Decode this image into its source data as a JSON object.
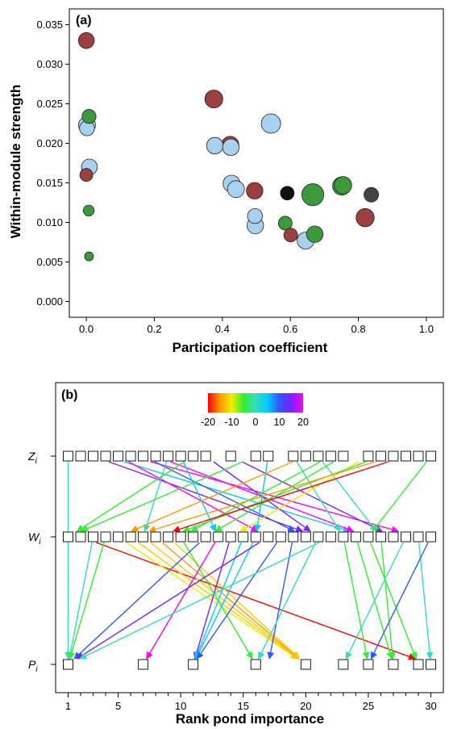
{
  "chart_data": [
    {
      "type": "scatter",
      "panel": "(a)",
      "xlabel": "Participation coefficient",
      "ylabel": "Within-module strength",
      "xlim": [
        -0.05,
        1.05
      ],
      "ylim": [
        -0.002,
        0.037
      ],
      "xticks": [
        "0.0",
        "0.2",
        "0.4",
        "0.6",
        "0.8",
        "1.0"
      ],
      "yticks": [
        "0.000",
        "0.005",
        "0.010",
        "0.015",
        "0.020",
        "0.025",
        "0.030",
        "0.035"
      ],
      "point_size_encoding": "relative marker size",
      "points": [
        {
          "x": 0.0,
          "y": 0.033,
          "size": 0.55,
          "color": "#9b3f3f"
        },
        {
          "x": 0.002,
          "y": 0.0223,
          "size": 0.6,
          "color": "#a8d1f0"
        },
        {
          "x": 0.002,
          "y": 0.0219,
          "size": 0.5,
          "color": "#a8d1f0"
        },
        {
          "x": 0.008,
          "y": 0.0234,
          "size": 0.45,
          "color": "#3b9a3b"
        },
        {
          "x": 0.009,
          "y": 0.017,
          "size": 0.55,
          "color": "#a8d1f0"
        },
        {
          "x": 0.0,
          "y": 0.016,
          "size": 0.4,
          "color": "#9b3f3f"
        },
        {
          "x": 0.007,
          "y": 0.0115,
          "size": 0.3,
          "color": "#3b9a3b"
        },
        {
          "x": 0.008,
          "y": 0.0057,
          "size": 0.2,
          "color": "#3b9a3b"
        },
        {
          "x": 0.375,
          "y": 0.0256,
          "size": 0.65,
          "color": "#9b3f3f"
        },
        {
          "x": 0.378,
          "y": 0.0197,
          "size": 0.58,
          "color": "#a8d1f0"
        },
        {
          "x": 0.423,
          "y": 0.0198,
          "size": 0.62,
          "color": "#9b3f3f"
        },
        {
          "x": 0.425,
          "y": 0.0195,
          "size": 0.58,
          "color": "#a8d1f0"
        },
        {
          "x": 0.427,
          "y": 0.0149,
          "size": 0.6,
          "color": "#a8d1f0"
        },
        {
          "x": 0.44,
          "y": 0.0142,
          "size": 0.6,
          "color": "#a8d1f0"
        },
        {
          "x": 0.495,
          "y": 0.014,
          "size": 0.58,
          "color": "#9b3f3f"
        },
        {
          "x": 0.543,
          "y": 0.0225,
          "size": 0.72,
          "color": "#a8d1f0"
        },
        {
          "x": 0.496,
          "y": 0.0108,
          "size": 0.5,
          "color": "#a8d1f0"
        },
        {
          "x": 0.497,
          "y": 0.0096,
          "size": 0.58,
          "color": "#a8d1f0"
        },
        {
          "x": 0.591,
          "y": 0.0137,
          "size": 0.44,
          "color": "#111111"
        },
        {
          "x": 0.585,
          "y": 0.0099,
          "size": 0.44,
          "color": "#3b9a3b"
        },
        {
          "x": 0.601,
          "y": 0.0084,
          "size": 0.44,
          "color": "#9b3f3f"
        },
        {
          "x": 0.666,
          "y": 0.0135,
          "size": 0.85,
          "color": "#3b9a3b"
        },
        {
          "x": 0.645,
          "y": 0.0077,
          "size": 0.6,
          "color": "#a8d1f0"
        },
        {
          "x": 0.672,
          "y": 0.0085,
          "size": 0.58,
          "color": "#3b9a3b"
        },
        {
          "x": 0.751,
          "y": 0.0146,
          "size": 0.66,
          "color": "#3b9a3b"
        },
        {
          "x": 0.755,
          "y": 0.0147,
          "size": 0.62,
          "color": "#3b9a3b"
        },
        {
          "x": 0.82,
          "y": 0.0106,
          "size": 0.66,
          "color": "#9b3f3f"
        },
        {
          "x": 0.838,
          "y": 0.0135,
          "size": 0.48,
          "color": "#444444"
        }
      ]
    },
    {
      "type": "bipartite-rank-diagram",
      "panel": "(b)",
      "xlabel": "Rank pond importance",
      "xlim": [
        0,
        31
      ],
      "xticks": [
        "1",
        "5",
        "10",
        "15",
        "20",
        "25",
        "30"
      ],
      "minor_xticks": [
        2,
        3,
        4,
        6,
        7,
        8,
        9,
        11,
        12,
        13,
        14,
        16,
        17,
        18,
        19,
        21,
        22,
        23,
        24,
        26,
        27,
        28,
        29
      ],
      "rows": [
        {
          "label": "Z_i",
          "label_main": "Z",
          "label_sub": "i",
          "squares": [
            1,
            2,
            3,
            4,
            5,
            6,
            7,
            8,
            9,
            10,
            11,
            12,
            14,
            16,
            17,
            19,
            20,
            21,
            22,
            23,
            25,
            26,
            27,
            28,
            29,
            30
          ]
        },
        {
          "label": "W_i",
          "label_main": "W",
          "label_sub": "i",
          "squares": [
            1,
            2,
            3,
            4,
            5,
            6,
            7,
            8,
            9,
            10,
            11,
            12,
            13,
            14,
            15,
            16,
            17,
            18,
            19,
            20,
            21,
            22,
            23,
            24,
            25,
            26,
            27,
            28,
            29,
            30
          ]
        },
        {
          "label": "P_i",
          "label_main": "P",
          "label_sub": "i",
          "squares": [
            1,
            7,
            11,
            16,
            20,
            23,
            25,
            27,
            29,
            30
          ]
        }
      ],
      "colorbar": {
        "min": -20,
        "max": 20,
        "tick_labels": [
          "-20",
          "-10",
          "0",
          "10",
          "20"
        ],
        "colors": [
          "#ff0000",
          "#ff9900",
          "#eeee00",
          "#33ee33",
          "#33ddbb",
          "#00ccff",
          "#3355ff",
          "#7722ff",
          "#ff00ff"
        ]
      },
      "links": [
        {
          "from": 1,
          "to": 1,
          "path": [
            "Z",
            "W",
            "P"
          ],
          "color": "#33ddbb"
        },
        {
          "from": 2,
          "to": 30,
          "path": [
            "W",
            "P"
          ],
          "color": "#ff0000"
        },
        {
          "from": 3,
          "to": 21,
          "path": [
            "Z",
            "W"
          ],
          "color": "#7722ff"
        },
        {
          "from": 3,
          "to": 1,
          "path": [
            "W",
            "P"
          ],
          "color": "#33ddbb"
        },
        {
          "from": 4,
          "to": 25,
          "path": [
            "Z",
            "W"
          ],
          "color": "#00ccff"
        },
        {
          "from": 4,
          "to": 1,
          "path": [
            "W",
            "P"
          ],
          "color": "#33ee33"
        },
        {
          "from": 5,
          "to": 17,
          "path": [
            "Z",
            "W"
          ],
          "color": "#ff00ff"
        },
        {
          "from": 5,
          "to": 20,
          "path": [
            "W",
            "P"
          ],
          "color": "#eeee00"
        },
        {
          "from": 6,
          "to": 29,
          "path": [
            "Z",
            "W"
          ],
          "color": "#ff00ff"
        },
        {
          "from": 6,
          "to": 20,
          "path": [
            "W",
            "P"
          ],
          "color": "#ffcc00"
        },
        {
          "from": 7,
          "to": 20,
          "path": [
            "Z",
            "W"
          ],
          "color": "#3355ff"
        },
        {
          "from": 7,
          "to": 20,
          "path": [
            "W",
            "P"
          ],
          "color": "#ffcc00"
        },
        {
          "from": 8,
          "to": 25,
          "path": [
            "Z",
            "W"
          ],
          "color": "#ff00ff"
        },
        {
          "from": 8,
          "to": 20,
          "path": [
            "W",
            "P"
          ],
          "color": "#ff9900"
        },
        {
          "from": 9,
          "to": 7,
          "path": [
            "Z",
            "W"
          ],
          "color": "#33ddbb"
        },
        {
          "from": 9,
          "to": 20,
          "path": [
            "W",
            "P"
          ],
          "color": "#ffcc00"
        },
        {
          "from": 10,
          "to": 13,
          "path": [
            "Z",
            "W"
          ],
          "color": "#00ccff"
        },
        {
          "from": 10,
          "to": 16,
          "path": [
            "W",
            "P"
          ],
          "color": "#33ee33"
        },
        {
          "from": 11,
          "to": 1,
          "path": [
            "Z",
            "W"
          ],
          "color": "#33ee33"
        },
        {
          "from": 12,
          "to": 21,
          "path": [
            "Z",
            "W"
          ],
          "color": "#7722ff"
        },
        {
          "from": 12,
          "to": 1,
          "path": [
            "W",
            "P"
          ],
          "color": "#3355ff"
        },
        {
          "from": 13,
          "to": 7,
          "path": [
            "W",
            "P"
          ],
          "color": "#ff00ff"
        },
        {
          "from": 14,
          "to": 27,
          "path": [
            "Z",
            "W"
          ],
          "color": "#7722ff"
        },
        {
          "from": 14,
          "to": 11,
          "path": [
            "W",
            "P"
          ],
          "color": "#7722ff"
        },
        {
          "from": 15,
          "to": 11,
          "path": [
            "W",
            "P"
          ],
          "color": "#00ccff"
        },
        {
          "from": 16,
          "to": 1,
          "path": [
            "Z",
            "W"
          ],
          "color": "#33ee33"
        },
        {
          "from": 16,
          "to": 11,
          "path": [
            "W",
            "P"
          ],
          "color": "#00ccff"
        },
        {
          "from": 17,
          "to": 16,
          "path": [
            "Z",
            "W"
          ],
          "color": "#00ccff"
        },
        {
          "from": 17,
          "to": 1,
          "path": [
            "W",
            "P"
          ],
          "color": "#7722ff"
        },
        {
          "from": 18,
          "to": 11,
          "path": [
            "W",
            "P"
          ],
          "color": "#3355ff"
        },
        {
          "from": 19,
          "to": 23,
          "path": [
            "Z",
            "W"
          ],
          "color": "#33ddbb"
        },
        {
          "from": 19,
          "to": 17,
          "path": [
            "W",
            "P"
          ],
          "color": "#3355ff"
        },
        {
          "from": 20,
          "to": 5,
          "path": [
            "Z",
            "W"
          ],
          "color": "#ff9900"
        },
        {
          "from": 21,
          "to": 26,
          "path": [
            "Z",
            "W"
          ],
          "color": "#33ddbb"
        },
        {
          "from": 21,
          "to": 16,
          "path": [
            "W",
            "P"
          ],
          "color": "#33ddbb"
        },
        {
          "from": 22,
          "to": 10,
          "path": [
            "Z",
            "W"
          ],
          "color": "#33ee33"
        },
        {
          "from": 22,
          "to": 1,
          "path": [
            "W",
            "P"
          ],
          "color": "#33ddbb"
        },
        {
          "from": 23,
          "to": 12,
          "path": [
            "Z",
            "W"
          ],
          "color": "#33ee33"
        },
        {
          "from": 23,
          "to": 25,
          "path": [
            "W",
            "P"
          ],
          "color": "#33ee33"
        },
        {
          "from": 24,
          "to": 27,
          "path": [
            "W",
            "P"
          ],
          "color": "#33ee33"
        },
        {
          "from": 25,
          "to": 14,
          "path": [
            "Z",
            "W"
          ],
          "color": "#eeee00"
        },
        {
          "from": 25,
          "to": 29,
          "path": [
            "W",
            "P"
          ],
          "color": "#33ee33"
        },
        {
          "from": 26,
          "to": 9,
          "path": [
            "Z",
            "W"
          ],
          "color": "#33ee33"
        },
        {
          "from": 26,
          "to": 27,
          "path": [
            "W",
            "P"
          ],
          "color": "#33ee33"
        },
        {
          "from": 27,
          "to": 6,
          "path": [
            "Z",
            "W"
          ],
          "color": "#ff9900"
        },
        {
          "from": 28,
          "to": 8,
          "path": [
            "Z",
            "W"
          ],
          "color": "#ff0000"
        },
        {
          "from": 28,
          "to": 23,
          "path": [
            "W",
            "P"
          ],
          "color": "#33ddbb"
        },
        {
          "from": 29,
          "to": 30,
          "path": [
            "W",
            "P"
          ],
          "color": "#33ddbb"
        },
        {
          "from": 30,
          "to": 25,
          "path": [
            "Z",
            "W"
          ],
          "color": "#33ee33"
        },
        {
          "from": 30,
          "to": 25,
          "path": [
            "W",
            "P"
          ],
          "color": "#3355ff"
        }
      ]
    }
  ]
}
